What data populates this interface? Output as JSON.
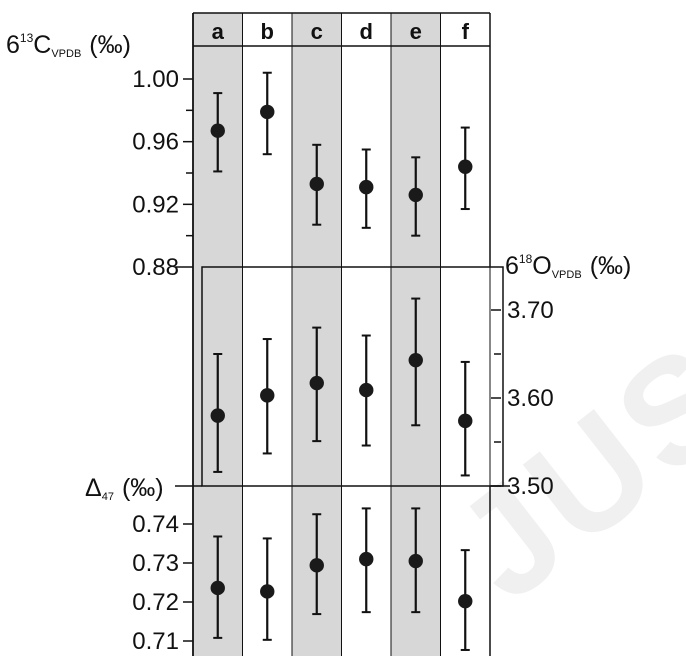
{
  "chart_data": [
    {
      "type": "scatter",
      "panel": "top",
      "categories": [
        "a",
        "b",
        "c",
        "d",
        "e",
        "f"
      ],
      "axis_label": {
        "symbol": "6",
        "superscript": "13",
        "element": "C",
        "subscript": "VPDB",
        "unit": "(‰)"
      },
      "ylim": [
        0.88,
        1.02
      ],
      "y_ticks": [
        "1.00",
        "0.96",
        "0.92",
        "0.88"
      ],
      "y_tick_values": [
        1.0,
        0.96,
        0.92,
        0.88
      ],
      "minor_ticks": [
        0.98,
        0.94,
        0.9
      ],
      "axis_side": "left",
      "series": [
        {
          "values": [
            0.967,
            0.979,
            0.933,
            0.931,
            0.926,
            0.944
          ],
          "err_low": [
            0.941,
            0.952,
            0.907,
            0.905,
            0.9,
            0.917
          ],
          "err_high": [
            0.991,
            1.004,
            0.958,
            0.955,
            0.95,
            0.969
          ]
        }
      ]
    },
    {
      "type": "scatter",
      "panel": "middle",
      "categories": [
        "a",
        "b",
        "c",
        "d",
        "e",
        "f"
      ],
      "axis_label": {
        "symbol": "6",
        "superscript": "18",
        "element": "O",
        "subscript": "VPDB",
        "unit": "(‰)"
      },
      "ylim": [
        3.5,
        3.74
      ],
      "y_ticks": [
        "3.70",
        "3.60",
        "3.50"
      ],
      "y_tick_values": [
        3.7,
        3.6,
        3.5
      ],
      "minor_ticks": [
        3.65,
        3.55
      ],
      "axis_side": "right",
      "series": [
        {
          "values": [
            3.58,
            3.603,
            3.617,
            3.609,
            3.643,
            3.574
          ],
          "err_low": [
            3.516,
            3.537,
            3.551,
            3.546,
            3.569,
            3.512
          ],
          "err_high": [
            3.65,
            3.667,
            3.68,
            3.671,
            3.713,
            3.641
          ]
        }
      ]
    },
    {
      "type": "scatter",
      "panel": "bottom",
      "categories": [
        "a",
        "b",
        "c",
        "d",
        "e",
        "f"
      ],
      "axis_label": {
        "symbol": "Δ",
        "subscript": "47",
        "unit": "(‰)"
      },
      "ylim": [
        0.708,
        0.7475
      ],
      "y_ticks": [
        "0.74",
        "0.73",
        "0.72",
        "0.71"
      ],
      "y_tick_values": [
        0.74,
        0.73,
        0.72,
        0.71
      ],
      "axis_side": "left",
      "series": [
        {
          "values": [
            0.7236,
            0.7227,
            0.7294,
            0.731,
            0.7305,
            0.7202
          ],
          "err_low": [
            0.7108,
            0.7103,
            0.7169,
            0.7174,
            0.7174,
            0.7077
          ],
          "err_high": [
            0.7368,
            0.7363,
            0.7425,
            0.744,
            0.744,
            0.7333
          ]
        }
      ]
    }
  ],
  "colors": {
    "shaded": "#d7d7d7",
    "marker": "#1a1a1a",
    "line": "#111111"
  },
  "shaded_columns": [
    "a",
    "c",
    "e"
  ],
  "watermark": "JUSC"
}
